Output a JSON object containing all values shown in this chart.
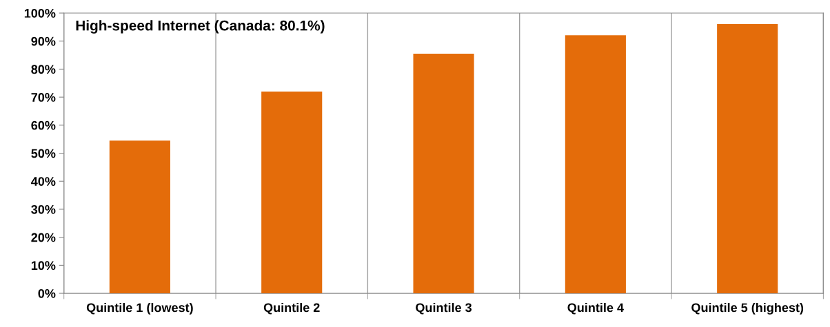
{
  "chart_data": {
    "type": "bar",
    "title": "High-speed Internet (Canada: 80.1%)",
    "categories": [
      "Quintile 1 (lowest)",
      "Quintile 2",
      "Quintile 3",
      "Quintile 4",
      "Quintile 5 (highest)"
    ],
    "values": [
      54.5,
      72.0,
      85.5,
      92.1,
      96.1
    ],
    "color": "#e46c0a",
    "ylim": [
      0,
      100
    ],
    "yticks": [
      {
        "value": 0,
        "label": "0%"
      },
      {
        "value": 10,
        "label": "10%"
      },
      {
        "value": 20,
        "label": "20%"
      },
      {
        "value": 30,
        "label": "30%"
      },
      {
        "value": 40,
        "label": "40%"
      },
      {
        "value": 50,
        "label": "50%"
      },
      {
        "value": 60,
        "label": "60%"
      },
      {
        "value": 70,
        "label": "70%"
      },
      {
        "value": 80,
        "label": "80%"
      },
      {
        "value": 90,
        "label": "90%"
      },
      {
        "value": 100,
        "label": "100%"
      }
    ],
    "grid": "x"
  }
}
